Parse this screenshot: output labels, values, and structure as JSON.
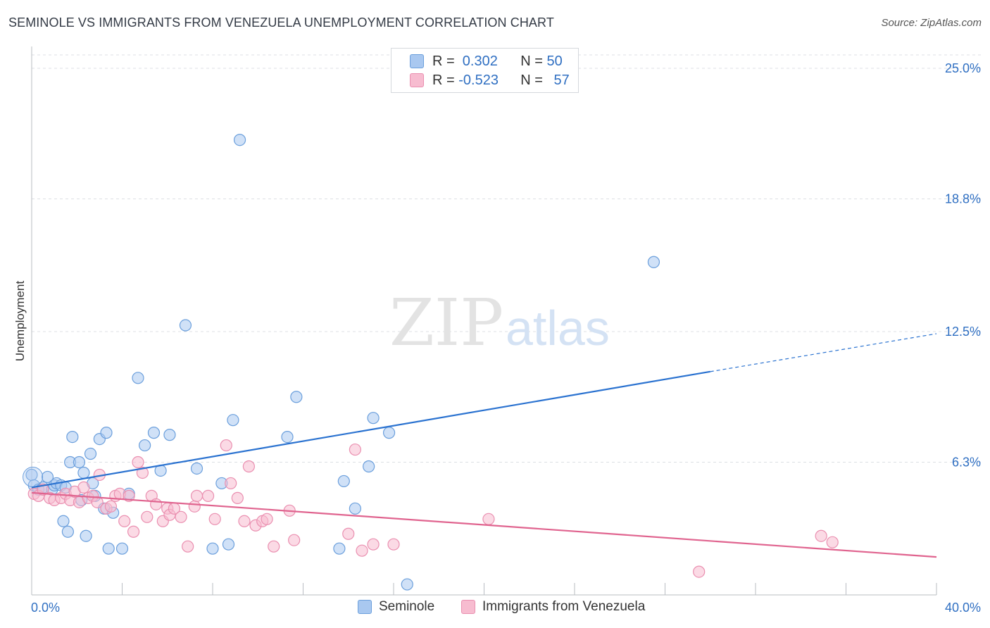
{
  "title": "SEMINOLE VS IMMIGRANTS FROM VENEZUELA UNEMPLOYMENT CORRELATION CHART",
  "source": "Source: ZipAtlas.com",
  "watermark": {
    "zip": "ZIP",
    "atlas": "atlas"
  },
  "colors": {
    "seminole_fill": "#a9c8f0",
    "seminole_stroke": "#6b9fdc",
    "seminole_line": "#2a72d0",
    "venezuela_fill": "#f7bcd0",
    "venezuela_stroke": "#ea8fb0",
    "venezuela_line": "#e0648f",
    "tick_label": "#2f6fc2",
    "grid": "#dcdfe4"
  },
  "legend_top": {
    "rows": [
      {
        "r_label": "R = ",
        "r_value": " 0.302",
        "n_label": "N = ",
        "n_value": "50"
      },
      {
        "r_label": "R = ",
        "r_value": "-0.523",
        "n_label": "N = ",
        "n_value": "57"
      }
    ]
  },
  "legend_bottom": {
    "items": [
      "Seminole",
      "Immigrants from Venezuela"
    ]
  },
  "chart_data": {
    "type": "scatter",
    "xlabel": "",
    "ylabel": "Unemployment",
    "xlim": [
      0,
      40
    ],
    "ylim": [
      0,
      25
    ],
    "x_tick_labels": [
      "0.0%",
      "40.0%"
    ],
    "y_ticks": [
      6.3,
      12.5,
      18.8,
      25.0
    ],
    "y_tick_labels": [
      "6.3%",
      "12.5%",
      "18.8%",
      "25.0%"
    ],
    "grid": "horizontal dashed",
    "series": [
      {
        "name": "Seminole",
        "R": 0.302,
        "N": 50,
        "trend": {
          "x0": 0,
          "y0": 5.1,
          "x1": 30,
          "y1": 10.6,
          "dashed_to_x": 40,
          "dashed_to_y": 12.4
        },
        "points": [
          [
            0.0,
            5.7
          ],
          [
            0.1,
            5.2
          ],
          [
            0.3,
            5.0
          ],
          [
            0.5,
            5.1
          ],
          [
            0.7,
            5.6
          ],
          [
            0.9,
            5.0
          ],
          [
            1.0,
            5.2
          ],
          [
            1.1,
            5.3
          ],
          [
            1.3,
            5.2
          ],
          [
            1.4,
            3.5
          ],
          [
            1.5,
            5.1
          ],
          [
            1.6,
            3.0
          ],
          [
            1.7,
            6.3
          ],
          [
            1.8,
            7.5
          ],
          [
            2.1,
            6.3
          ],
          [
            2.2,
            4.5
          ],
          [
            2.3,
            5.8
          ],
          [
            2.4,
            2.8
          ],
          [
            2.6,
            6.7
          ],
          [
            2.7,
            5.3
          ],
          [
            2.8,
            4.7
          ],
          [
            3.0,
            7.4
          ],
          [
            3.2,
            4.1
          ],
          [
            3.3,
            7.7
          ],
          [
            3.4,
            2.2
          ],
          [
            3.6,
            3.9
          ],
          [
            4.0,
            2.2
          ],
          [
            4.3,
            4.8
          ],
          [
            4.7,
            10.3
          ],
          [
            5.0,
            7.1
          ],
          [
            5.4,
            7.7
          ],
          [
            5.7,
            5.9
          ],
          [
            6.1,
            7.6
          ],
          [
            6.8,
            12.8
          ],
          [
            7.3,
            6.0
          ],
          [
            8.0,
            2.2
          ],
          [
            8.4,
            5.3
          ],
          [
            8.7,
            2.4
          ],
          [
            8.9,
            8.3
          ],
          [
            9.2,
            21.6
          ],
          [
            11.3,
            7.5
          ],
          [
            11.7,
            9.4
          ],
          [
            13.6,
            2.2
          ],
          [
            13.8,
            5.4
          ],
          [
            14.3,
            4.1
          ],
          [
            14.9,
            6.1
          ],
          [
            15.1,
            8.4
          ],
          [
            15.8,
            7.7
          ],
          [
            16.6,
            0.5
          ],
          [
            27.5,
            15.8
          ]
        ]
      },
      {
        "name": "Immigrants from Venezuela",
        "R": -0.523,
        "N": 57,
        "trend": {
          "x0": 0,
          "y0": 4.85,
          "x1": 40,
          "y1": 1.8
        },
        "points": [
          [
            0.1,
            4.8
          ],
          [
            0.3,
            4.7
          ],
          [
            0.5,
            5.0
          ],
          [
            0.8,
            4.6
          ],
          [
            1.0,
            4.5
          ],
          [
            1.3,
            4.6
          ],
          [
            1.5,
            4.8
          ],
          [
            1.7,
            4.5
          ],
          [
            1.9,
            4.9
          ],
          [
            2.1,
            4.4
          ],
          [
            2.3,
            5.1
          ],
          [
            2.5,
            4.6
          ],
          [
            2.7,
            4.7
          ],
          [
            2.9,
            4.4
          ],
          [
            3.0,
            5.7
          ],
          [
            3.3,
            4.1
          ],
          [
            3.5,
            4.2
          ],
          [
            3.7,
            4.7
          ],
          [
            3.9,
            4.8
          ],
          [
            4.1,
            3.5
          ],
          [
            4.3,
            4.7
          ],
          [
            4.5,
            3.0
          ],
          [
            4.7,
            6.3
          ],
          [
            4.9,
            5.8
          ],
          [
            5.1,
            3.7
          ],
          [
            5.3,
            4.7
          ],
          [
            5.5,
            4.3
          ],
          [
            5.8,
            3.5
          ],
          [
            6.0,
            4.1
          ],
          [
            6.1,
            3.8
          ],
          [
            6.3,
            4.1
          ],
          [
            6.6,
            3.7
          ],
          [
            6.9,
            2.3
          ],
          [
            7.2,
            4.2
          ],
          [
            7.3,
            4.7
          ],
          [
            7.8,
            4.7
          ],
          [
            8.1,
            3.6
          ],
          [
            8.6,
            7.1
          ],
          [
            8.8,
            5.3
          ],
          [
            9.1,
            4.6
          ],
          [
            9.4,
            3.5
          ],
          [
            9.6,
            6.1
          ],
          [
            9.9,
            3.3
          ],
          [
            10.2,
            3.5
          ],
          [
            10.4,
            3.6
          ],
          [
            10.7,
            2.3
          ],
          [
            11.4,
            4.0
          ],
          [
            11.6,
            2.6
          ],
          [
            14.0,
            2.9
          ],
          [
            14.3,
            6.9
          ],
          [
            14.6,
            2.1
          ],
          [
            15.1,
            2.4
          ],
          [
            16.0,
            2.4
          ],
          [
            20.2,
            3.6
          ],
          [
            29.5,
            1.1
          ],
          [
            34.9,
            2.8
          ],
          [
            35.4,
            2.5
          ]
        ]
      }
    ]
  }
}
